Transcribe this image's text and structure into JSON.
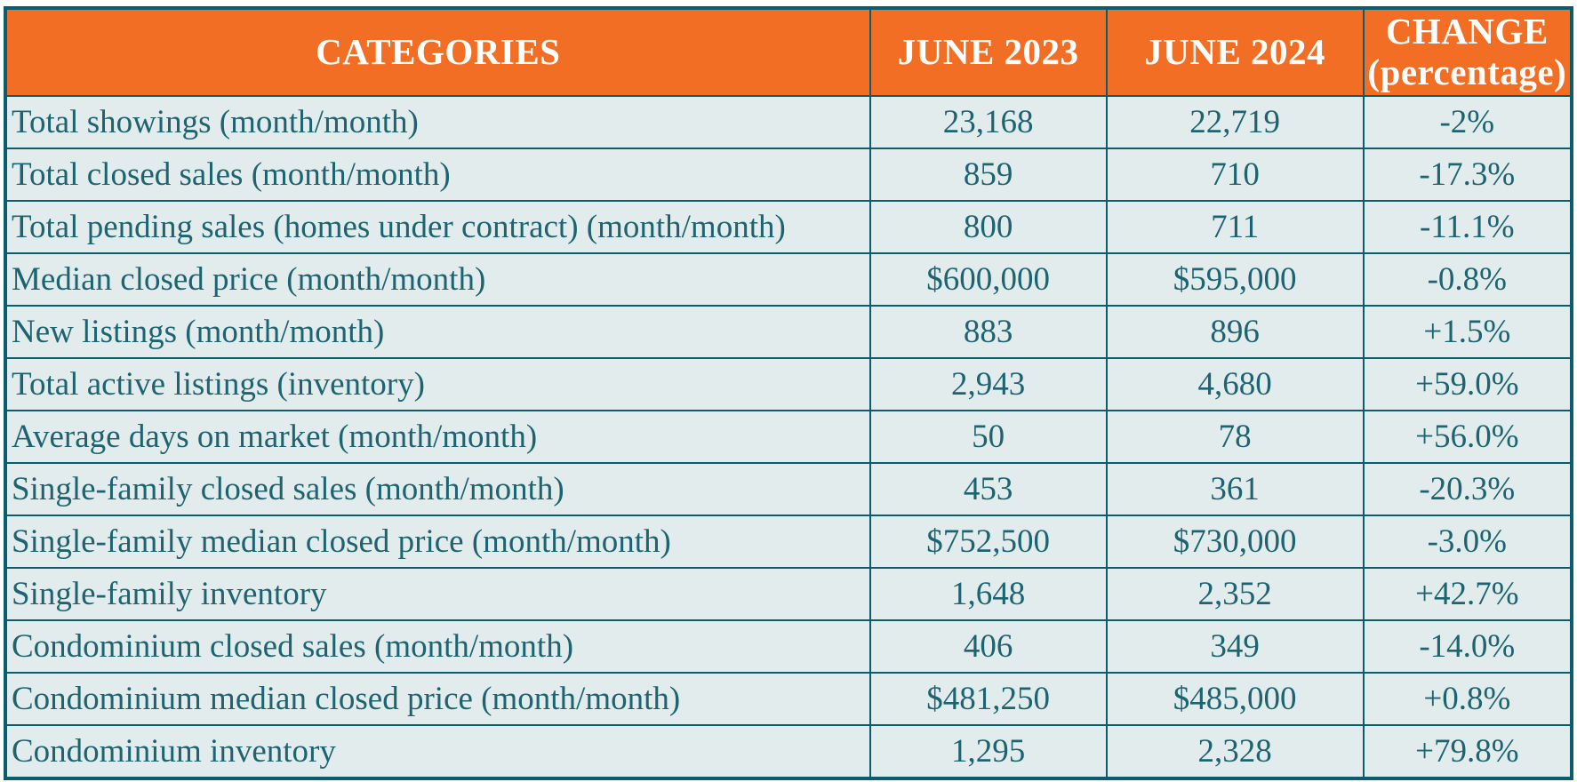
{
  "chart_data": {
    "type": "table",
    "title": "Monthly market statistics comparison, June 2023 vs June 2024",
    "headers": {
      "categories": "CATEGORIES",
      "june2023": "JUNE 2023",
      "june2024": "JUNE 2024",
      "change_line1": "CHANGE",
      "change_line2": "(percentage)"
    },
    "rows": [
      {
        "category": "Total showings (month/month)",
        "june2023": "23,168",
        "june2024": "22,719",
        "change": "-2%"
      },
      {
        "category": "Total closed sales (month/month)",
        "june2023": "859",
        "june2024": "710",
        "change": "-17.3%"
      },
      {
        "category": "Total pending sales (homes under contract) (month/month)",
        "june2023": "800",
        "june2024": "711",
        "change": "-11.1%"
      },
      {
        "category": "Median closed price (month/month)",
        "june2023": "$600,000",
        "june2024": "$595,000",
        "change": "-0.8%"
      },
      {
        "category": "New listings (month/month)",
        "june2023": "883",
        "june2024": "896",
        "change": "+1.5%"
      },
      {
        "category": "Total active listings (inventory)",
        "june2023": "2,943",
        "june2024": "4,680",
        "change": "+59.0%"
      },
      {
        "category": "Average days on market (month/month)",
        "june2023": "50",
        "june2024": "78",
        "change": "+56.0%"
      },
      {
        "category": "Single-family closed sales (month/month)",
        "june2023": "453",
        "june2024": "361",
        "change": "-20.3%"
      },
      {
        "category": "Single-family median closed price (month/month)",
        "june2023": "$752,500",
        "june2024": "$730,000",
        "change": "-3.0%"
      },
      {
        "category": "Single-family inventory",
        "june2023": "1,648",
        "june2024": "2,352",
        "change": "+42.7%"
      },
      {
        "category": "Condominium closed sales (month/month)",
        "june2023": "406",
        "june2024": "349",
        "change": "-14.0%"
      },
      {
        "category": "Condominium median closed price (month/month)",
        "june2023": "$481,250",
        "june2024": "$485,000",
        "change": "+0.8%"
      },
      {
        "category": "Condominium inventory",
        "june2023": "1,295",
        "june2024": "2,328",
        "change": "+79.8%"
      }
    ],
    "colors": {
      "header_bg": "#f26e24",
      "header_text": "#ffffff",
      "body_bg": "#e2eced",
      "body_text": "#1d6470",
      "border": "#0b5d6e",
      "page_bg": "#ffffff"
    },
    "layout": {
      "column_alignment": [
        "left",
        "center",
        "center",
        "center"
      ],
      "grid": "full borders"
    }
  }
}
